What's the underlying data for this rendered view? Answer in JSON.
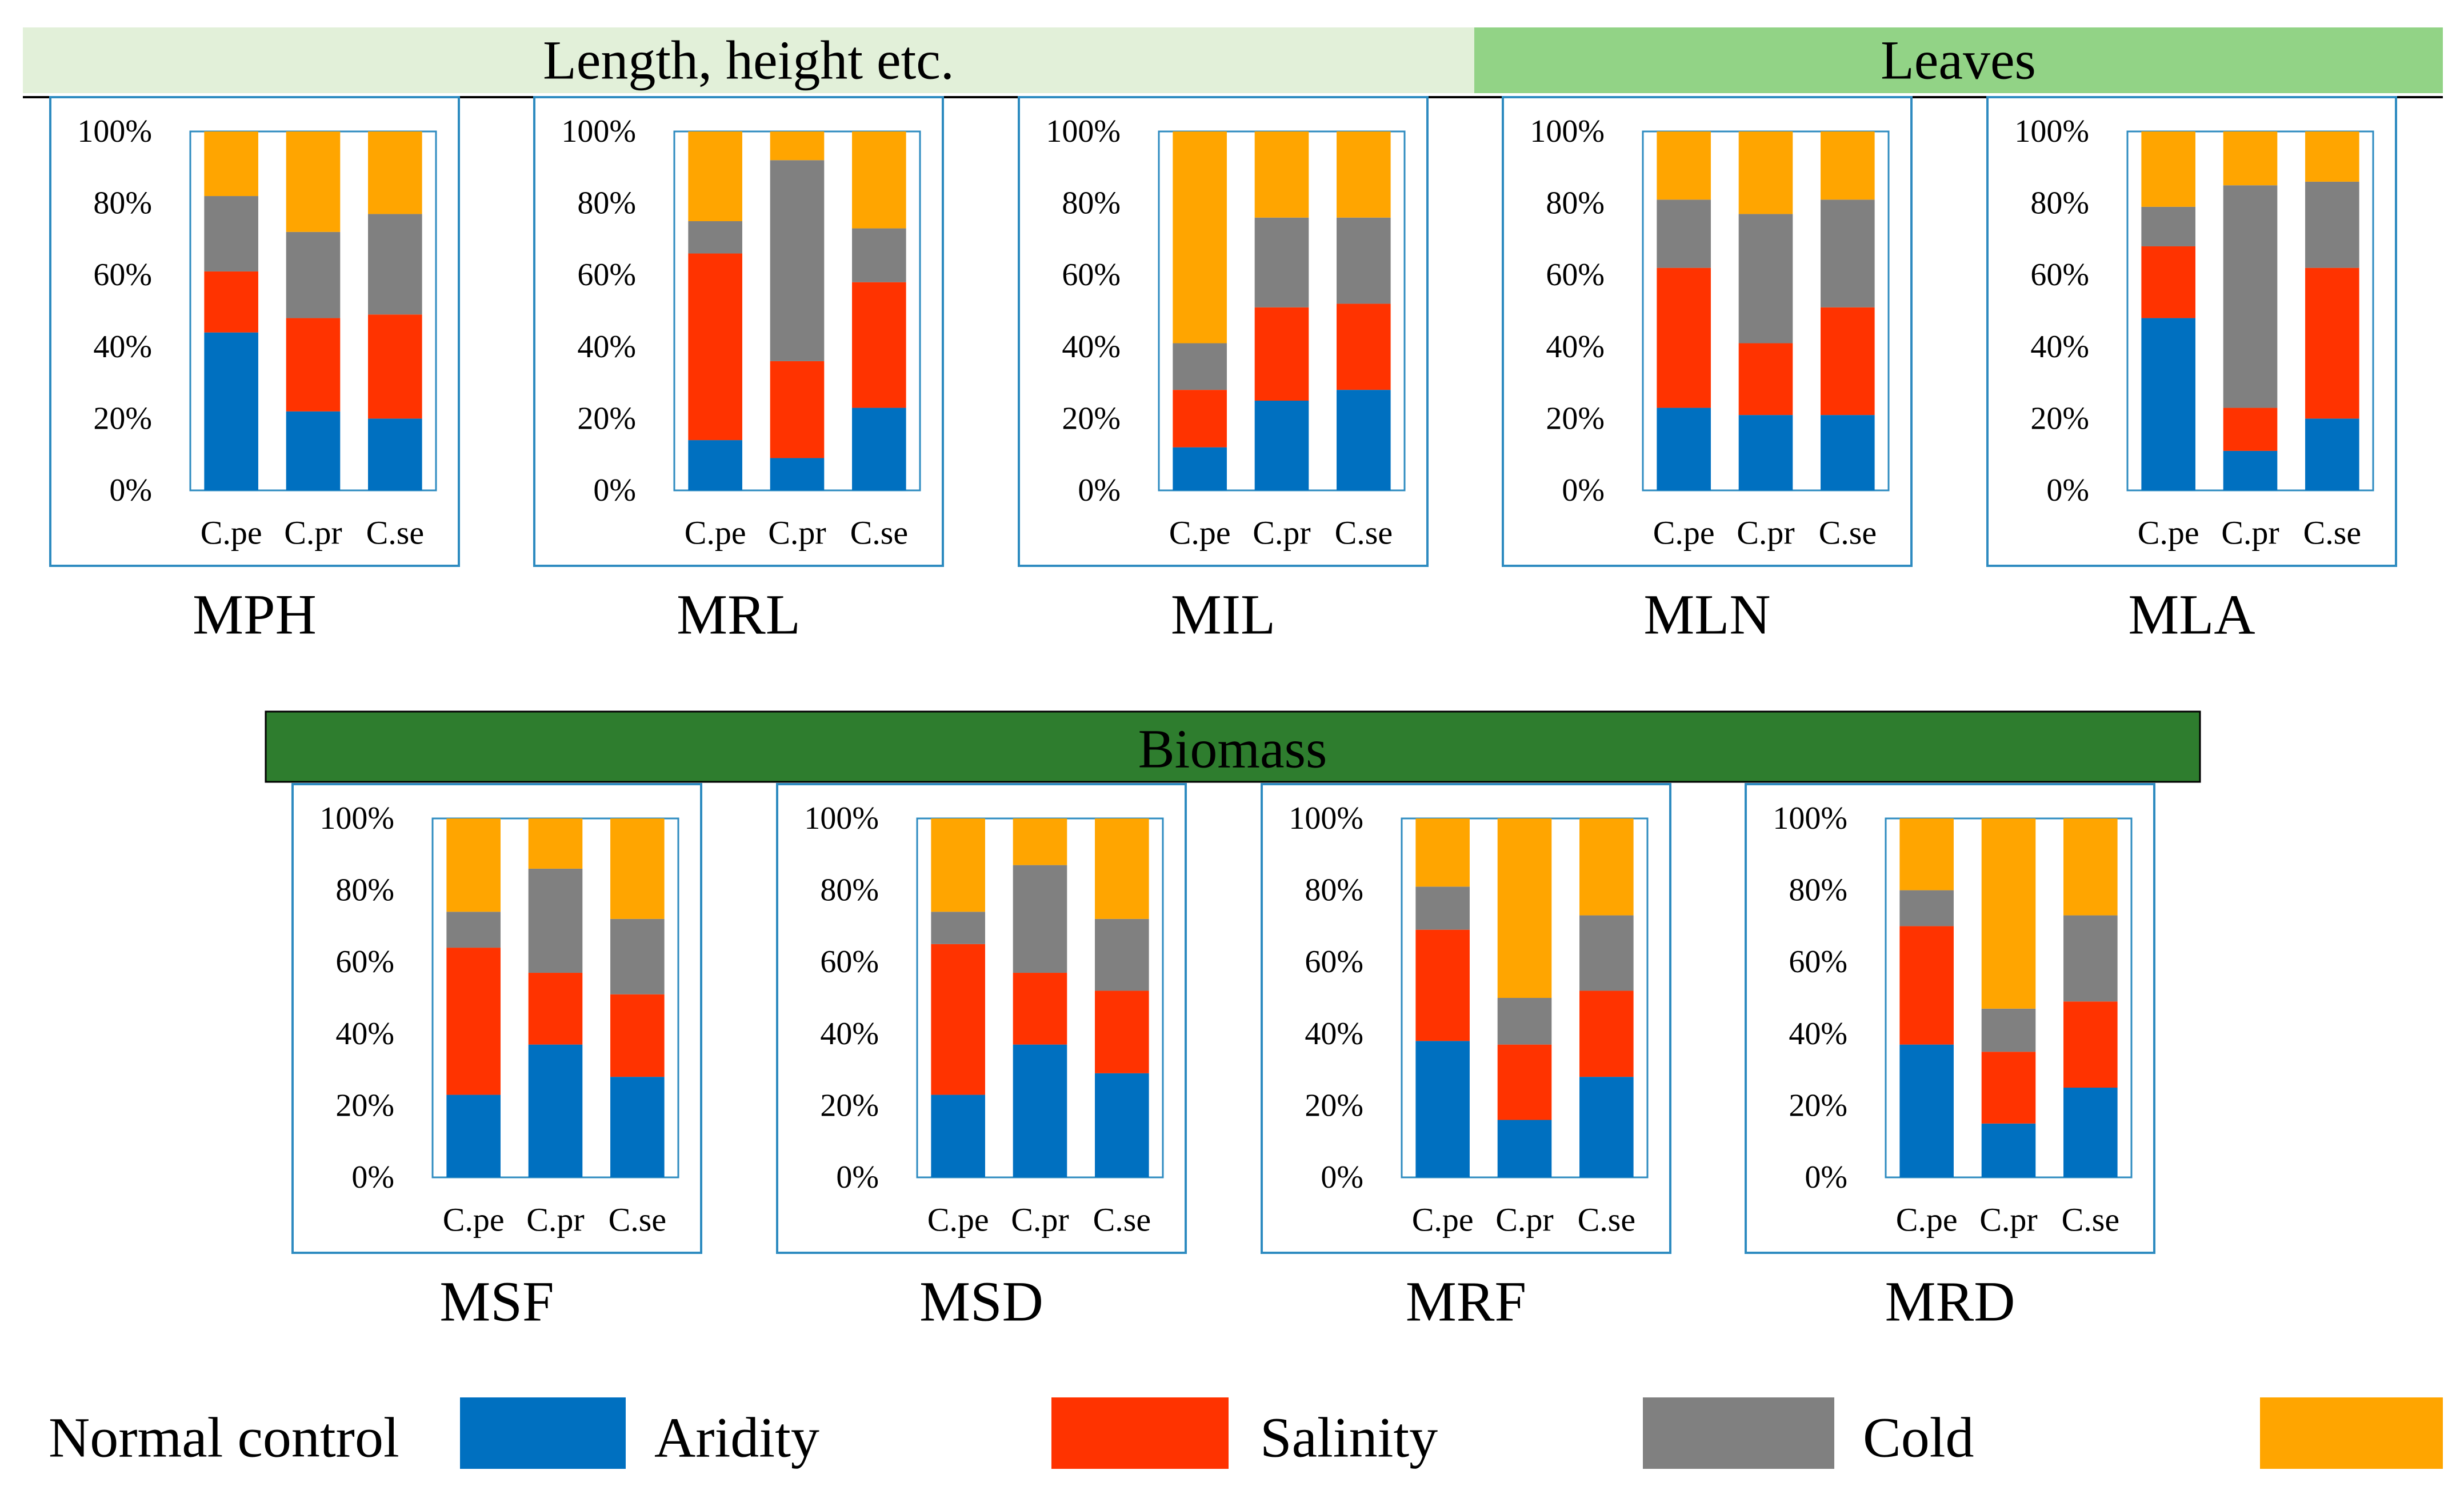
{
  "series_colors": {
    "Normal control": "#0070C0",
    "Aridity": "#FF3300",
    "Salinity": "#808080",
    "Cold": "#FFA500"
  },
  "band_colors": [
    "#E2F0D9",
    "#92D386",
    "#2E7D2E"
  ],
  "groups": [
    "Length, height etc.",
    "Leaves",
    "Biomass"
  ],
  "legend": [
    "Normal control",
    "Aridity",
    "Salinity",
    "Cold"
  ],
  "chart_data": [
    {
      "type": "bar",
      "stacked": true,
      "title": "MPH",
      "group": "Length, height etc.",
      "categories": [
        "C.pe",
        "C.pr",
        "C.se"
      ],
      "yticks": [
        "0%",
        "20%",
        "40%",
        "60%",
        "80%",
        "100%"
      ],
      "ylim": [
        0,
        100
      ],
      "series": [
        {
          "name": "Normal control",
          "values": [
            44,
            22,
            20
          ]
        },
        {
          "name": "Aridity",
          "values": [
            17,
            26,
            29
          ]
        },
        {
          "name": "Salinity",
          "values": [
            21,
            24,
            28
          ]
        },
        {
          "name": "Cold",
          "values": [
            18,
            28,
            23
          ]
        }
      ]
    },
    {
      "type": "bar",
      "stacked": true,
      "title": "MRL",
      "group": "Length, height etc.",
      "categories": [
        "C.pe",
        "C.pr",
        "C.se"
      ],
      "yticks": [
        "0%",
        "20%",
        "40%",
        "60%",
        "80%",
        "100%"
      ],
      "ylim": [
        0,
        100
      ],
      "series": [
        {
          "name": "Normal control",
          "values": [
            14,
            9,
            23
          ]
        },
        {
          "name": "Aridity",
          "values": [
            52,
            27,
            35
          ]
        },
        {
          "name": "Salinity",
          "values": [
            9,
            56,
            15
          ]
        },
        {
          "name": "Cold",
          "values": [
            25,
            8,
            27
          ]
        }
      ]
    },
    {
      "type": "bar",
      "stacked": true,
      "title": "MIL",
      "group": "Length, height etc.",
      "categories": [
        "C.pe",
        "C.pr",
        "C.se"
      ],
      "yticks": [
        "0%",
        "20%",
        "40%",
        "60%",
        "80%",
        "100%"
      ],
      "ylim": [
        0,
        100
      ],
      "series": [
        {
          "name": "Normal control",
          "values": [
            12,
            25,
            28
          ]
        },
        {
          "name": "Aridity",
          "values": [
            16,
            26,
            24
          ]
        },
        {
          "name": "Salinity",
          "values": [
            13,
            25,
            24
          ]
        },
        {
          "name": "Cold",
          "values": [
            59,
            24,
            24
          ]
        }
      ]
    },
    {
      "type": "bar",
      "stacked": true,
      "title": "MLN",
      "group": "Leaves",
      "categories": [
        "C.pe",
        "C.pr",
        "C.se"
      ],
      "yticks": [
        "0%",
        "20%",
        "40%",
        "60%",
        "80%",
        "100%"
      ],
      "ylim": [
        0,
        100
      ],
      "series": [
        {
          "name": "Normal control",
          "values": [
            23,
            21,
            21
          ]
        },
        {
          "name": "Aridity",
          "values": [
            39,
            20,
            30
          ]
        },
        {
          "name": "Salinity",
          "values": [
            19,
            36,
            30
          ]
        },
        {
          "name": "Cold",
          "values": [
            19,
            23,
            19
          ]
        }
      ]
    },
    {
      "type": "bar",
      "stacked": true,
      "title": "MLA",
      "group": "Leaves",
      "categories": [
        "C.pe",
        "C.pr",
        "C.se"
      ],
      "yticks": [
        "0%",
        "20%",
        "40%",
        "60%",
        "80%",
        "100%"
      ],
      "ylim": [
        0,
        100
      ],
      "series": [
        {
          "name": "Normal control",
          "values": [
            48,
            11,
            20
          ]
        },
        {
          "name": "Aridity",
          "values": [
            20,
            12,
            42
          ]
        },
        {
          "name": "Salinity",
          "values": [
            11,
            62,
            24
          ]
        },
        {
          "name": "Cold",
          "values": [
            21,
            15,
            14
          ]
        }
      ]
    },
    {
      "type": "bar",
      "stacked": true,
      "title": "MSF",
      "group": "Biomass",
      "categories": [
        "C.pe",
        "C.pr",
        "C.se"
      ],
      "yticks": [
        "0%",
        "20%",
        "40%",
        "60%",
        "80%",
        "100%"
      ],
      "ylim": [
        0,
        100
      ],
      "series": [
        {
          "name": "Normal control",
          "values": [
            23,
            37,
            28
          ]
        },
        {
          "name": "Aridity",
          "values": [
            41,
            20,
            23
          ]
        },
        {
          "name": "Salinity",
          "values": [
            10,
            29,
            21
          ]
        },
        {
          "name": "Cold",
          "values": [
            26,
            14,
            28
          ]
        }
      ]
    },
    {
      "type": "bar",
      "stacked": true,
      "title": "MSD",
      "group": "Biomass",
      "categories": [
        "C.pe",
        "C.pr",
        "C.se"
      ],
      "yticks": [
        "0%",
        "20%",
        "40%",
        "60%",
        "80%",
        "100%"
      ],
      "ylim": [
        0,
        100
      ],
      "series": [
        {
          "name": "Normal control",
          "values": [
            23,
            37,
            29
          ]
        },
        {
          "name": "Aridity",
          "values": [
            42,
            20,
            23
          ]
        },
        {
          "name": "Salinity",
          "values": [
            9,
            30,
            20
          ]
        },
        {
          "name": "Cold",
          "values": [
            26,
            13,
            28
          ]
        }
      ]
    },
    {
      "type": "bar",
      "stacked": true,
      "title": "MRF",
      "group": "Biomass",
      "categories": [
        "C.pe",
        "C.pr",
        "C.se"
      ],
      "yticks": [
        "0%",
        "20%",
        "40%",
        "60%",
        "80%",
        "100%"
      ],
      "ylim": [
        0,
        100
      ],
      "series": [
        {
          "name": "Normal control",
          "values": [
            38,
            16,
            28
          ]
        },
        {
          "name": "Aridity",
          "values": [
            31,
            21,
            24
          ]
        },
        {
          "name": "Salinity",
          "values": [
            12,
            13,
            21
          ]
        },
        {
          "name": "Cold",
          "values": [
            19,
            50,
            27
          ]
        }
      ]
    },
    {
      "type": "bar",
      "stacked": true,
      "title": "MRD",
      "group": "Biomass",
      "categories": [
        "C.pe",
        "C.pr",
        "C.se"
      ],
      "yticks": [
        "0%",
        "20%",
        "40%",
        "60%",
        "80%",
        "100%"
      ],
      "ylim": [
        0,
        100
      ],
      "series": [
        {
          "name": "Normal control",
          "values": [
            37,
            15,
            25
          ]
        },
        {
          "name": "Aridity",
          "values": [
            33,
            20,
            24
          ]
        },
        {
          "name": "Salinity",
          "values": [
            10,
            12,
            24
          ]
        },
        {
          "name": "Cold",
          "values": [
            20,
            53,
            27
          ]
        }
      ]
    }
  ]
}
